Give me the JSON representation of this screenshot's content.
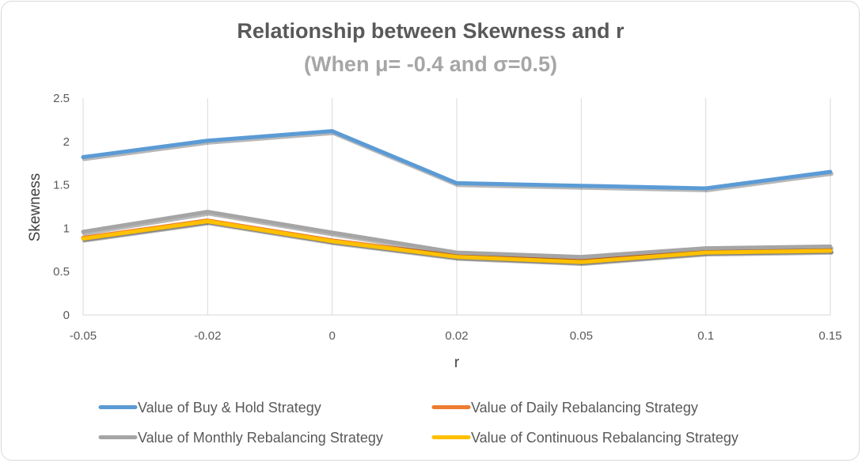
{
  "chart_data": {
    "type": "line",
    "title": "Relationship between Skewness and r",
    "subtitle": "(When μ= -0.4 and σ=0.5)",
    "xlabel": "r",
    "ylabel": "Skewness",
    "categories": [
      "-0.05",
      "-0.02",
      "0",
      "0.02",
      "0.05",
      "0.1",
      "0.15"
    ],
    "ylim": [
      0,
      2.5
    ],
    "yticks": [
      "0",
      "0.5",
      "1",
      "1.5",
      "2",
      "2.5"
    ],
    "grid": "vertical gridlines",
    "legend_position": "bottom",
    "series": [
      {
        "name": "Value of Buy & Hold Strategy",
        "color": "#5b9bd5",
        "values": [
          1.82,
          2.01,
          2.12,
          1.52,
          1.49,
          1.46,
          1.65
        ]
      },
      {
        "name": "Value of Daily Rebalancing Strategy",
        "color": "#ed7d31",
        "values": [
          0.89,
          1.09,
          0.86,
          0.68,
          0.62,
          0.73,
          0.75
        ]
      },
      {
        "name": "Value of Monthly Rebalancing Strategy",
        "color": "#a5a5a5",
        "values": [
          0.96,
          1.19,
          0.95,
          0.72,
          0.67,
          0.77,
          0.79
        ]
      },
      {
        "name": "Value of Continuous Rebalancing Strategy",
        "color": "#ffc000",
        "values": [
          0.88,
          1.08,
          0.85,
          0.67,
          0.61,
          0.72,
          0.74
        ]
      }
    ]
  }
}
